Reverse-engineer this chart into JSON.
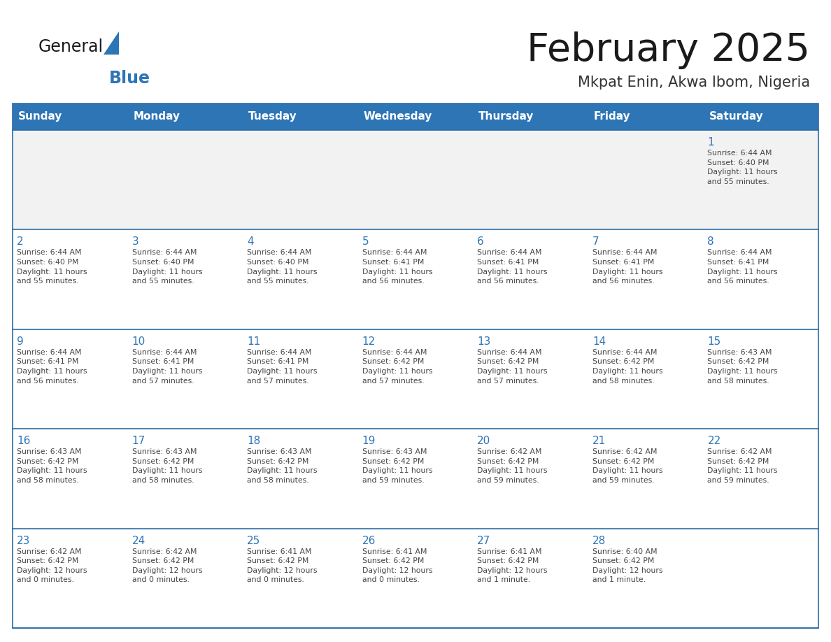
{
  "title": "February 2025",
  "subtitle": "Mkpat Enin, Akwa Ibom, Nigeria",
  "header_bg_color": "#2E75B6",
  "header_text_color": "#FFFFFF",
  "cell_bg_color": "#FFFFFF",
  "alt_row_color": "#F2F2F2",
  "cell_border_color": "#2E6DA4",
  "day_number_color": "#2E75B6",
  "cell_text_color": "#444444",
  "title_color": "#1a1a1a",
  "subtitle_color": "#333333",
  "weekdays": [
    "Sunday",
    "Monday",
    "Tuesday",
    "Wednesday",
    "Thursday",
    "Friday",
    "Saturday"
  ],
  "weeks": [
    [
      {
        "day": null,
        "info": ""
      },
      {
        "day": null,
        "info": ""
      },
      {
        "day": null,
        "info": ""
      },
      {
        "day": null,
        "info": ""
      },
      {
        "day": null,
        "info": ""
      },
      {
        "day": null,
        "info": ""
      },
      {
        "day": 1,
        "info": "Sunrise: 6:44 AM\nSunset: 6:40 PM\nDaylight: 11 hours\nand 55 minutes."
      }
    ],
    [
      {
        "day": 2,
        "info": "Sunrise: 6:44 AM\nSunset: 6:40 PM\nDaylight: 11 hours\nand 55 minutes."
      },
      {
        "day": 3,
        "info": "Sunrise: 6:44 AM\nSunset: 6:40 PM\nDaylight: 11 hours\nand 55 minutes."
      },
      {
        "day": 4,
        "info": "Sunrise: 6:44 AM\nSunset: 6:40 PM\nDaylight: 11 hours\nand 55 minutes."
      },
      {
        "day": 5,
        "info": "Sunrise: 6:44 AM\nSunset: 6:41 PM\nDaylight: 11 hours\nand 56 minutes."
      },
      {
        "day": 6,
        "info": "Sunrise: 6:44 AM\nSunset: 6:41 PM\nDaylight: 11 hours\nand 56 minutes."
      },
      {
        "day": 7,
        "info": "Sunrise: 6:44 AM\nSunset: 6:41 PM\nDaylight: 11 hours\nand 56 minutes."
      },
      {
        "day": 8,
        "info": "Sunrise: 6:44 AM\nSunset: 6:41 PM\nDaylight: 11 hours\nand 56 minutes."
      }
    ],
    [
      {
        "day": 9,
        "info": "Sunrise: 6:44 AM\nSunset: 6:41 PM\nDaylight: 11 hours\nand 56 minutes."
      },
      {
        "day": 10,
        "info": "Sunrise: 6:44 AM\nSunset: 6:41 PM\nDaylight: 11 hours\nand 57 minutes."
      },
      {
        "day": 11,
        "info": "Sunrise: 6:44 AM\nSunset: 6:41 PM\nDaylight: 11 hours\nand 57 minutes."
      },
      {
        "day": 12,
        "info": "Sunrise: 6:44 AM\nSunset: 6:42 PM\nDaylight: 11 hours\nand 57 minutes."
      },
      {
        "day": 13,
        "info": "Sunrise: 6:44 AM\nSunset: 6:42 PM\nDaylight: 11 hours\nand 57 minutes."
      },
      {
        "day": 14,
        "info": "Sunrise: 6:44 AM\nSunset: 6:42 PM\nDaylight: 11 hours\nand 58 minutes."
      },
      {
        "day": 15,
        "info": "Sunrise: 6:43 AM\nSunset: 6:42 PM\nDaylight: 11 hours\nand 58 minutes."
      }
    ],
    [
      {
        "day": 16,
        "info": "Sunrise: 6:43 AM\nSunset: 6:42 PM\nDaylight: 11 hours\nand 58 minutes."
      },
      {
        "day": 17,
        "info": "Sunrise: 6:43 AM\nSunset: 6:42 PM\nDaylight: 11 hours\nand 58 minutes."
      },
      {
        "day": 18,
        "info": "Sunrise: 6:43 AM\nSunset: 6:42 PM\nDaylight: 11 hours\nand 58 minutes."
      },
      {
        "day": 19,
        "info": "Sunrise: 6:43 AM\nSunset: 6:42 PM\nDaylight: 11 hours\nand 59 minutes."
      },
      {
        "day": 20,
        "info": "Sunrise: 6:42 AM\nSunset: 6:42 PM\nDaylight: 11 hours\nand 59 minutes."
      },
      {
        "day": 21,
        "info": "Sunrise: 6:42 AM\nSunset: 6:42 PM\nDaylight: 11 hours\nand 59 minutes."
      },
      {
        "day": 22,
        "info": "Sunrise: 6:42 AM\nSunset: 6:42 PM\nDaylight: 11 hours\nand 59 minutes."
      }
    ],
    [
      {
        "day": 23,
        "info": "Sunrise: 6:42 AM\nSunset: 6:42 PM\nDaylight: 12 hours\nand 0 minutes."
      },
      {
        "day": 24,
        "info": "Sunrise: 6:42 AM\nSunset: 6:42 PM\nDaylight: 12 hours\nand 0 minutes."
      },
      {
        "day": 25,
        "info": "Sunrise: 6:41 AM\nSunset: 6:42 PM\nDaylight: 12 hours\nand 0 minutes."
      },
      {
        "day": 26,
        "info": "Sunrise: 6:41 AM\nSunset: 6:42 PM\nDaylight: 12 hours\nand 0 minutes."
      },
      {
        "day": 27,
        "info": "Sunrise: 6:41 AM\nSunset: 6:42 PM\nDaylight: 12 hours\nand 1 minute."
      },
      {
        "day": 28,
        "info": "Sunrise: 6:40 AM\nSunset: 6:42 PM\nDaylight: 12 hours\nand 1 minute."
      },
      {
        "day": null,
        "info": ""
      }
    ]
  ],
  "logo_general_color": "#1a1a1a",
  "logo_blue_color": "#2E75B6",
  "fig_width": 11.88,
  "fig_height": 9.18,
  "dpi": 100
}
